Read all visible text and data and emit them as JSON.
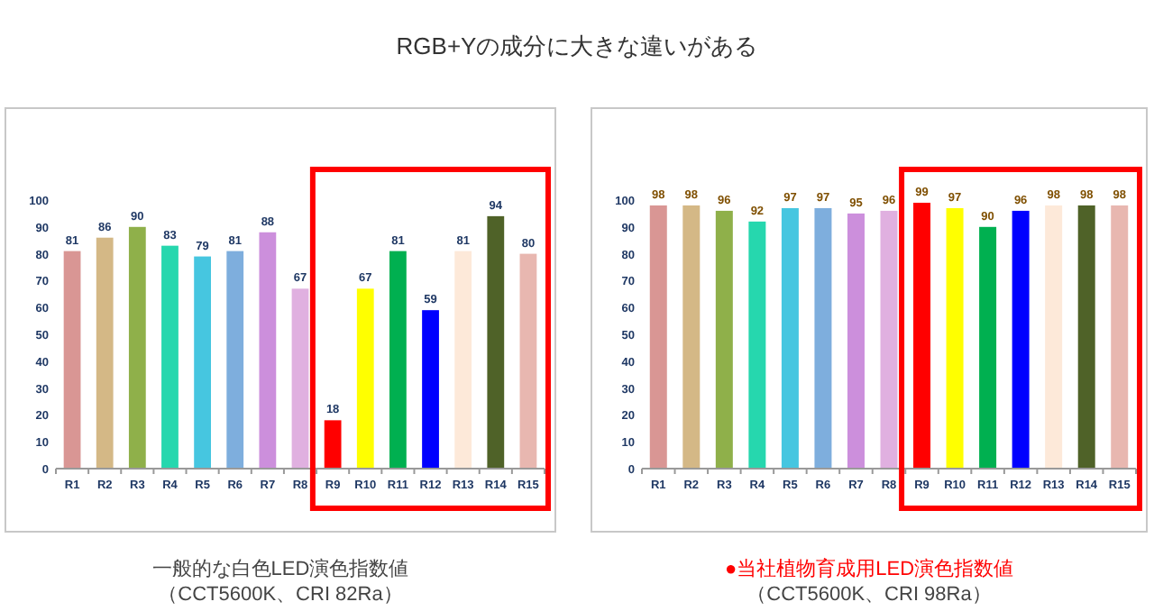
{
  "chart_data": [
    {
      "type": "bar",
      "title": "RGB+Yの成分に大きな違いがある",
      "categories": [
        "R1",
        "R2",
        "R3",
        "R4",
        "R5",
        "R6",
        "R7",
        "R8",
        "R9",
        "R10",
        "R11",
        "R12",
        "R13",
        "R14",
        "R15"
      ],
      "values": [
        81,
        86,
        90,
        83,
        79,
        81,
        88,
        67,
        18,
        67,
        81,
        59,
        81,
        94,
        80
      ],
      "colors": [
        "#d99694",
        "#d4b886",
        "#8fb04a",
        "#26d7ae",
        "#46c6e0",
        "#7eaedd",
        "#cc8fdc",
        "#e0b0e0",
        "#ff0000",
        "#ffff00",
        "#00b050",
        "#0000ff",
        "#fde9d9",
        "#4f6228",
        "#e8b7b0"
      ],
      "ylim": [
        0,
        100
      ],
      "yticks": [
        0,
        10,
        20,
        30,
        40,
        50,
        60,
        70,
        80,
        90,
        100
      ],
      "data_labels": true,
      "grid": false,
      "annotations": [
        "一般的な白色LED演色指数値",
        "（CCT5600K、CRI 82Ra）"
      ]
    },
    {
      "type": "bar",
      "categories": [
        "R1",
        "R2",
        "R3",
        "R4",
        "R5",
        "R6",
        "R7",
        "R8",
        "R9",
        "R10",
        "R11",
        "R12",
        "R13",
        "R14",
        "R15"
      ],
      "values": [
        98,
        98,
        96,
        92,
        97,
        97,
        95,
        96,
        99,
        97,
        90,
        96,
        98,
        98,
        98
      ],
      "colors": [
        "#d99694",
        "#d4b886",
        "#8fb04a",
        "#26d7ae",
        "#46c6e0",
        "#7eaedd",
        "#cc8fdc",
        "#e0b0e0",
        "#ff0000",
        "#ffff00",
        "#00b050",
        "#0000ff",
        "#fde9d9",
        "#4f6228",
        "#e8b7b0"
      ],
      "ylim": [
        0,
        100
      ],
      "yticks": [
        0,
        10,
        20,
        30,
        40,
        50,
        60,
        70,
        80,
        90,
        100
      ],
      "data_labels": true,
      "grid": false,
      "annotations": [
        "●当社植物育成用LED演色指数値",
        "（CCT5600K、CRI 98Ra）"
      ]
    }
  ]
}
